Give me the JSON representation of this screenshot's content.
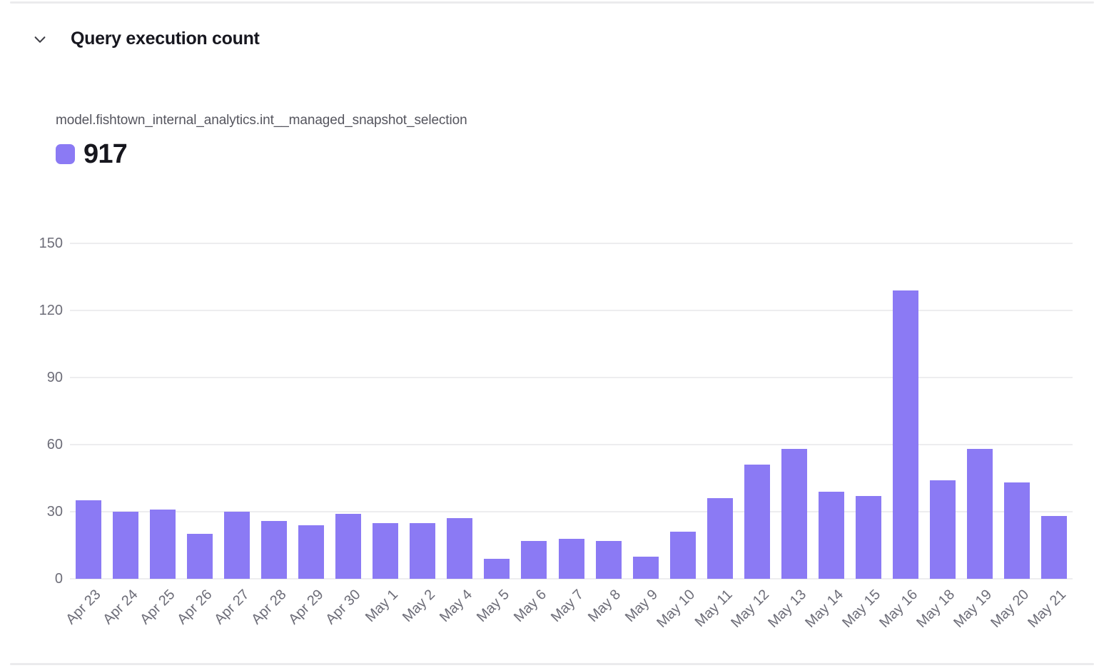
{
  "header": {
    "title": "Query execution count"
  },
  "series_label": "model.fishtown_internal_analytics.int__managed_snapshot_selection",
  "legend": {
    "value": "917",
    "color": "#8b7af4"
  },
  "colors": {
    "bar": "#8b7af4",
    "gridline": "#ededef",
    "axis_text": "#6d6d78",
    "title_text": "#17171f",
    "subtitle_text": "#55555e",
    "border": "#ebebed"
  },
  "chart_data": {
    "type": "bar",
    "title": "Query execution count",
    "series_name": "model.fishtown_internal_analytics.int__managed_snapshot_selection",
    "categories": [
      "Apr 23",
      "Apr 24",
      "Apr 25",
      "Apr 26",
      "Apr 27",
      "Apr 28",
      "Apr 29",
      "Apr 30",
      "May 1",
      "May 2",
      "May 4",
      "May 5",
      "May 6",
      "May 7",
      "May 8",
      "May 9",
      "May 10",
      "May 11",
      "May 12",
      "May 13",
      "May 14",
      "May 15",
      "May 16",
      "May 18",
      "May 19",
      "May 20",
      "May 21"
    ],
    "values": [
      35,
      30,
      31,
      20,
      30,
      26,
      24,
      29,
      25,
      25,
      27,
      9,
      17,
      18,
      17,
      10,
      21,
      36,
      51,
      58,
      39,
      37,
      129,
      44,
      58,
      43,
      28
    ],
    "total": 917,
    "xlabel": "",
    "ylabel": "",
    "ylim": [
      0,
      150
    ],
    "yticks": [
      0,
      30,
      60,
      90,
      120,
      150
    ],
    "grid": true,
    "bar_color": "#8b7af4",
    "legend_position": "top-left",
    "x_label_rotation": -45
  }
}
